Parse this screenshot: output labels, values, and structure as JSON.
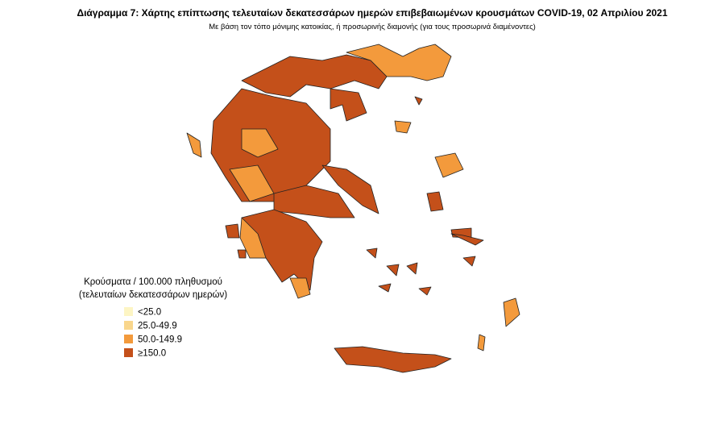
{
  "header": {
    "title": "Διάγραμμα 7: Χάρτης επίπτωσης τελευταίων δεκατεσσάρων ημερών επιβεβαιωμένων κρουσμάτων COVID-19, 02 Απριλίου 2021",
    "subtitle": "Με βάση τον τόπο μόνιμης κατοικίας, ή προσωρινής διαμονής (για τους προσωρινά διαμένοντες)"
  },
  "legend": {
    "title": [
      "Κρούσματα / 100.000 πληθυσμού",
      "(τελευταίων δεκατεσσάρων ημερών)"
    ],
    "items": [
      {
        "label": "<25.0",
        "color": "#fdf5c4"
      },
      {
        "label": "25.0-49.9",
        "color": "#f9d68c"
      },
      {
        "label": "50.0-149.9",
        "color": "#f39a3c"
      },
      {
        "label": "≥150.0",
        "color": "#c4501a"
      }
    ]
  }
}
